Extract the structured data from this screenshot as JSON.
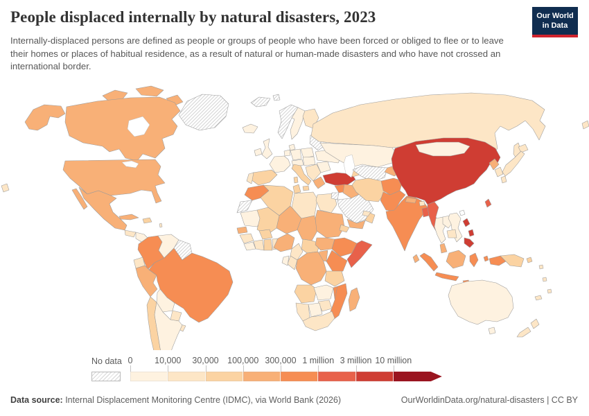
{
  "header": {
    "title": "People displaced internally by natural disasters, 2023",
    "subtitle": "Internally-displaced persons are defined as people or groups of people who have been forced or obliged to flee or to leave their homes or places of habitual residence, as a result of natural or human-made disasters and who have not crossed an international border."
  },
  "logo": {
    "line1": "Our World",
    "line2": "in Data",
    "bg_color": "#102d50",
    "accent_color": "#d0232e"
  },
  "legend": {
    "no_data_label": "No data",
    "tick_labels": [
      "0",
      "10,000",
      "30,000",
      "100,000",
      "300,000",
      "1 million",
      "3 million",
      "10 million"
    ]
  },
  "footer": {
    "source_label": "Data source:",
    "source_text": " Internal Displacement Monitoring Centre (IDMC), via World Bank (2026)",
    "attribution": "OurWorldinData.org/natural-disasters | CC BY"
  },
  "chart_data": {
    "type": "heatmap",
    "subtype": "world-choropleth-map",
    "title": "People displaced internally by natural disasters, 2023",
    "unit": "people",
    "legend_position": "bottom",
    "bin_edge_labels": [
      "0",
      "10,000",
      "30,000",
      "100,000",
      "300,000",
      "1 million",
      "3 million",
      "10 million"
    ],
    "bin_ranges": [
      "0-10,000",
      "10,000-30,000",
      "30,000-100,000",
      "100,000-300,000",
      "300,000-1 million",
      "1-3 million",
      "3-10 million",
      "10 million+"
    ],
    "bin_colors": [
      "#fef2e0",
      "#fde6c6",
      "#fbd3a2",
      "#f8b077",
      "#f68d53",
      "#e8614a",
      "#cf3d33",
      "#9a1520"
    ],
    "no_data_style": "white with diagonal gray hatching",
    "country_bins": {
      "Greenland": -1,
      "Svalbard": -1,
      "Iceland": 0,
      "Canada": 3,
      "United States": 3,
      "Mexico": 3,
      "Guatemala": 1,
      "Honduras": 1,
      "Nicaragua": 0,
      "Panama": 0,
      "Cuba": 3,
      "Haiti": 2,
      "Lesser Antilles": 1,
      "Colombia": 4,
      "Venezuela": 0,
      "Guyana": -1,
      "Ecuador": 1,
      "Peru": 3,
      "Brazil": 4,
      "Bolivia": 0,
      "Paraguay": 1,
      "Uruguay": 1,
      "Chile": 2,
      "Argentina": 0,
      "Ireland": 0,
      "United Kingdom": 0,
      "Norway": -1,
      "Sweden": 0,
      "Finland": 1,
      "Denmark": 0,
      "Baltics": -1,
      "Poland": 0,
      "Germany": 0,
      "Netherlands": 0,
      "France": 0,
      "Spain": 2,
      "Portugal": 1,
      "Italy": 2,
      "Austria": 0,
      "Czechia": 0,
      "Balkans": 1,
      "Greece": 3,
      "Romania": 0,
      "Ukraine": 0,
      "Morocco": 4,
      "Western Sahara": -1,
      "Algeria": 2,
      "Tunisia": 2,
      "Libya": 1,
      "Egypt": 1,
      "Mauritania": 0,
      "Mali": 2,
      "Niger": 3,
      "Chad": 3,
      "Sudan": 3,
      "South Sudan": 3,
      "Eritrea": 2,
      "Senegal": 3,
      "Guinea": 1,
      "Liberia": 0,
      "Ivory Coast": 1,
      "Ghana": 2,
      "Burkina Faso": 2,
      "Benin": 1,
      "Nigeria": 3,
      "Cameroon": 1,
      "Central African Republic": 2,
      "Ethiopia": 4,
      "Somalia": 5,
      "Kenya": 4,
      "Uganda": 3,
      "Democratic Republic of Congo": 3,
      "Congo": 1,
      "Gabon": 0,
      "Tanzania": 2,
      "Angola": 2,
      "Zambia": 0,
      "Malawi": 4,
      "Mozambique": 4,
      "Zimbabwe": 1,
      "Botswana": 0,
      "Namibia": 1,
      "South Africa": 1,
      "Madagascar": 3,
      "Turkey": 6,
      "Syria": 4,
      "Iraq": 3,
      "Jordan": -1,
      "Saudi Arabia": -1,
      "Yemen": 3,
      "Oman": 2,
      "United Arab Emirates": 1,
      "Caucasus": 2,
      "Russia": 1,
      "Kazakhstan": 0,
      "Turkmenistan": -1,
      "Kyrgyzstan": 3,
      "Iran": 2,
      "Afghanistan": 4,
      "Pakistan": 4,
      "India": 4,
      "Nepal": 3,
      "Bhutan": 1,
      "Bangladesh": 5,
      "Sri Lanka": 3,
      "Myanmar": 5,
      "Thailand": 0,
      "Laos": 0,
      "Vietnam": 0,
      "Cambodia": 1,
      "Malaysia": 3,
      "China": 6,
      "Mongolia": 0,
      "Taiwan": 5,
      "North Korea": 3,
      "South Korea": 1,
      "Japan": 1,
      "Philippines": 6,
      "Indonesia": 4,
      "Papua New Guinea": 2,
      "Solomon Islands": 1,
      "Australia": 0,
      "New Zealand": 1,
      "Fiji": 1,
      "Vanuatu": 1,
      "New Caledonia": 1,
      "Pacific islands": 1
    }
  }
}
